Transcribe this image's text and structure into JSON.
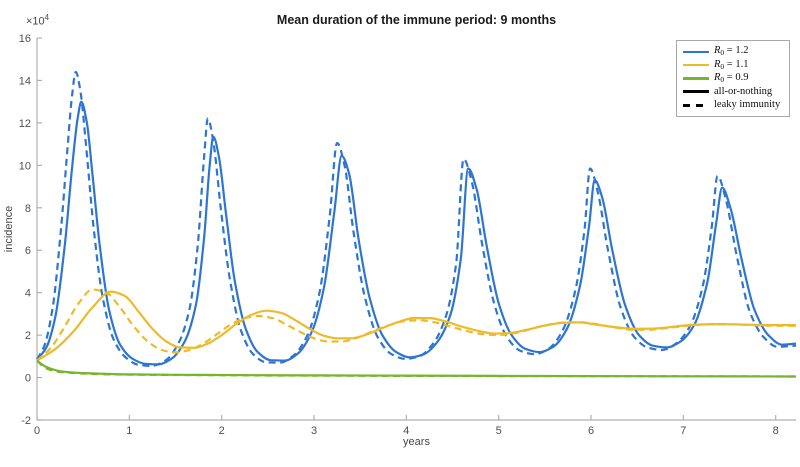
{
  "chart_data": {
    "type": "line",
    "title": "Mean duration of the immune period: 9 months",
    "xlabel": "years",
    "ylabel": "incidence",
    "y_multiplier": {
      "base": "×10",
      "exp": "4"
    },
    "xlim": [
      0,
      8.22
    ],
    "ylim": [
      -2,
      16
    ],
    "x_ticks": [
      "0",
      "1",
      "2",
      "3",
      "4",
      "5",
      "6",
      "7",
      "8"
    ],
    "x_tick_values": [
      0,
      1,
      2,
      3,
      4,
      5,
      6,
      7,
      8
    ],
    "y_ticks": [
      "-2",
      "0",
      "2",
      "4",
      "6",
      "8",
      "10",
      "12",
      "14",
      "16"
    ],
    "y_tick_values": [
      -2,
      0,
      2,
      4,
      6,
      8,
      10,
      12,
      14,
      16
    ],
    "grid": false,
    "legend_position": "top-right",
    "axis_color": "#b0b0b0",
    "series": [
      {
        "name": "R0 = 1.2 all-or-nothing",
        "color": "#2e75d2",
        "dash": "solid",
        "points": [
          [
            0,
            0.85
          ],
          [
            0.1,
            1.4
          ],
          [
            0.2,
            2.9
          ],
          [
            0.3,
            6.2
          ],
          [
            0.38,
            9.9
          ],
          [
            0.44,
            12.2
          ],
          [
            0.48,
            13.0
          ],
          [
            0.54,
            12.0
          ],
          [
            0.6,
            9.6
          ],
          [
            0.68,
            6.2
          ],
          [
            0.78,
            3.2
          ],
          [
            0.9,
            1.55
          ],
          [
            1.03,
            0.9
          ],
          [
            1.17,
            0.65
          ],
          [
            1.31,
            0.62
          ],
          [
            1.46,
            0.9
          ],
          [
            1.6,
            1.7
          ],
          [
            1.72,
            3.4
          ],
          [
            1.81,
            6.6
          ],
          [
            1.87,
            10.0
          ],
          [
            1.91,
            11.35
          ],
          [
            1.97,
            10.4
          ],
          [
            2.05,
            7.6
          ],
          [
            2.14,
            4.6
          ],
          [
            2.26,
            2.3
          ],
          [
            2.39,
            1.2
          ],
          [
            2.53,
            0.82
          ],
          [
            2.68,
            0.8
          ],
          [
            2.83,
            1.15
          ],
          [
            2.98,
            2.2
          ],
          [
            3.11,
            4.3
          ],
          [
            3.22,
            7.8
          ],
          [
            3.3,
            10.45
          ],
          [
            3.38,
            9.6
          ],
          [
            3.48,
            6.6
          ],
          [
            3.6,
            3.8
          ],
          [
            3.74,
            2.0
          ],
          [
            3.89,
            1.2
          ],
          [
            4.04,
            0.95
          ],
          [
            4.19,
            1.1
          ],
          [
            4.34,
            1.7
          ],
          [
            4.48,
            3.0
          ],
          [
            4.59,
            5.6
          ],
          [
            4.67,
            9.85
          ],
          [
            4.76,
            8.9
          ],
          [
            4.87,
            6.2
          ],
          [
            5.0,
            3.5
          ],
          [
            5.14,
            2.0
          ],
          [
            5.29,
            1.35
          ],
          [
            5.44,
            1.2
          ],
          [
            5.59,
            1.45
          ],
          [
            5.74,
            2.3
          ],
          [
            5.88,
            4.3
          ],
          [
            5.98,
            7.2
          ],
          [
            6.04,
            9.3
          ],
          [
            6.12,
            8.5
          ],
          [
            6.23,
            6.0
          ],
          [
            6.37,
            3.4
          ],
          [
            6.52,
            2.0
          ],
          [
            6.67,
            1.5
          ],
          [
            6.82,
            1.42
          ],
          [
            6.97,
            1.7
          ],
          [
            7.12,
            2.5
          ],
          [
            7.26,
            4.5
          ],
          [
            7.36,
            7.4
          ],
          [
            7.42,
            8.95
          ],
          [
            7.51,
            8.0
          ],
          [
            7.63,
            5.6
          ],
          [
            7.77,
            3.2
          ],
          [
            7.92,
            2.0
          ],
          [
            8.07,
            1.55
          ],
          [
            8.22,
            1.6
          ]
        ]
      },
      {
        "name": "R0 = 1.2 leaky immunity",
        "color": "#2e75d2",
        "dash": "dashed",
        "points": [
          [
            0,
            0.85
          ],
          [
            0.08,
            1.5
          ],
          [
            0.17,
            3.3
          ],
          [
            0.26,
            7.0
          ],
          [
            0.33,
            10.8
          ],
          [
            0.38,
            13.3
          ],
          [
            0.42,
            14.4
          ],
          [
            0.47,
            13.5
          ],
          [
            0.53,
            11.0
          ],
          [
            0.61,
            7.2
          ],
          [
            0.71,
            3.8
          ],
          [
            0.83,
            1.8
          ],
          [
            0.96,
            0.95
          ],
          [
            1.1,
            0.6
          ],
          [
            1.24,
            0.55
          ],
          [
            1.39,
            0.8
          ],
          [
            1.53,
            1.6
          ],
          [
            1.65,
            3.2
          ],
          [
            1.74,
            6.2
          ],
          [
            1.81,
            10.4
          ],
          [
            1.85,
            12.2
          ],
          [
            1.91,
            11.1
          ],
          [
            1.99,
            8.0
          ],
          [
            2.09,
            4.6
          ],
          [
            2.21,
            2.2
          ],
          [
            2.34,
            1.1
          ],
          [
            2.48,
            0.72
          ],
          [
            2.63,
            0.7
          ],
          [
            2.78,
            1.05
          ],
          [
            2.93,
            2.0
          ],
          [
            3.06,
            4.0
          ],
          [
            3.17,
            7.6
          ],
          [
            3.25,
            11.05
          ],
          [
            3.33,
            10.0
          ],
          [
            3.43,
            6.8
          ],
          [
            3.55,
            3.8
          ],
          [
            3.69,
            1.9
          ],
          [
            3.84,
            1.1
          ],
          [
            3.99,
            0.88
          ],
          [
            4.14,
            1.0
          ],
          [
            4.29,
            1.6
          ],
          [
            4.43,
            2.9
          ],
          [
            4.54,
            5.4
          ],
          [
            4.62,
            10.3
          ],
          [
            4.71,
            9.2
          ],
          [
            4.82,
            6.3
          ],
          [
            4.95,
            3.5
          ],
          [
            5.09,
            1.9
          ],
          [
            5.24,
            1.25
          ],
          [
            5.39,
            1.1
          ],
          [
            5.54,
            1.35
          ],
          [
            5.69,
            2.2
          ],
          [
            5.83,
            4.1
          ],
          [
            5.93,
            7.0
          ],
          [
            5.99,
            9.85
          ],
          [
            6.07,
            8.8
          ],
          [
            6.18,
            6.1
          ],
          [
            6.32,
            3.3
          ],
          [
            6.47,
            1.9
          ],
          [
            6.62,
            1.4
          ],
          [
            6.77,
            1.3
          ],
          [
            6.92,
            1.6
          ],
          [
            7.07,
            2.4
          ],
          [
            7.21,
            4.3
          ],
          [
            7.31,
            7.2
          ],
          [
            7.37,
            9.5
          ],
          [
            7.46,
            8.4
          ],
          [
            7.58,
            5.7
          ],
          [
            7.72,
            3.1
          ],
          [
            7.87,
            1.9
          ],
          [
            8.02,
            1.45
          ],
          [
            8.22,
            1.5
          ]
        ]
      },
      {
        "name": "R0 = 1.1 all-or-nothing",
        "color": "#eeba28",
        "dash": "solid",
        "points": [
          [
            0,
            0.8
          ],
          [
            0.2,
            1.35
          ],
          [
            0.4,
            2.2
          ],
          [
            0.6,
            3.3
          ],
          [
            0.8,
            4.05
          ],
          [
            0.95,
            3.85
          ],
          [
            1.1,
            3.1
          ],
          [
            1.25,
            2.3
          ],
          [
            1.4,
            1.7
          ],
          [
            1.55,
            1.42
          ],
          [
            1.7,
            1.4
          ],
          [
            1.85,
            1.6
          ],
          [
            2.0,
            2.0
          ],
          [
            2.15,
            2.5
          ],
          [
            2.32,
            2.95
          ],
          [
            2.48,
            3.15
          ],
          [
            2.64,
            3.05
          ],
          [
            2.8,
            2.7
          ],
          [
            2.95,
            2.3
          ],
          [
            3.1,
            1.98
          ],
          [
            3.25,
            1.85
          ],
          [
            3.4,
            1.85
          ],
          [
            3.55,
            2.0
          ],
          [
            3.72,
            2.3
          ],
          [
            3.9,
            2.6
          ],
          [
            4.08,
            2.8
          ],
          [
            4.25,
            2.8
          ],
          [
            4.42,
            2.65
          ],
          [
            4.6,
            2.4
          ],
          [
            4.78,
            2.2
          ],
          [
            4.95,
            2.07
          ],
          [
            5.12,
            2.1
          ],
          [
            5.3,
            2.25
          ],
          [
            5.5,
            2.45
          ],
          [
            5.7,
            2.58
          ],
          [
            5.88,
            2.6
          ],
          [
            6.05,
            2.5
          ],
          [
            6.25,
            2.38
          ],
          [
            6.45,
            2.3
          ],
          [
            6.62,
            2.3
          ],
          [
            6.8,
            2.35
          ],
          [
            7.0,
            2.45
          ],
          [
            7.2,
            2.5
          ],
          [
            7.4,
            2.52
          ],
          [
            7.6,
            2.5
          ],
          [
            7.8,
            2.48
          ],
          [
            8.0,
            2.47
          ],
          [
            8.22,
            2.47
          ]
        ]
      },
      {
        "name": "R0 = 1.1 leaky immunity",
        "color": "#eeba28",
        "dash": "dashed",
        "points": [
          [
            0,
            0.8
          ],
          [
            0.15,
            1.4
          ],
          [
            0.3,
            2.4
          ],
          [
            0.45,
            3.5
          ],
          [
            0.6,
            4.15
          ],
          [
            0.75,
            4.0
          ],
          [
            0.9,
            3.3
          ],
          [
            1.05,
            2.4
          ],
          [
            1.2,
            1.7
          ],
          [
            1.35,
            1.3
          ],
          [
            1.5,
            1.18
          ],
          [
            1.65,
            1.3
          ],
          [
            1.8,
            1.6
          ],
          [
            1.95,
            2.05
          ],
          [
            2.1,
            2.5
          ],
          [
            2.25,
            2.8
          ],
          [
            2.4,
            2.9
          ],
          [
            2.55,
            2.8
          ],
          [
            2.7,
            2.5
          ],
          [
            2.85,
            2.15
          ],
          [
            3.0,
            1.85
          ],
          [
            3.15,
            1.7
          ],
          [
            3.3,
            1.7
          ],
          [
            3.45,
            1.85
          ],
          [
            3.62,
            2.15
          ],
          [
            3.8,
            2.45
          ],
          [
            3.97,
            2.65
          ],
          [
            4.14,
            2.7
          ],
          [
            4.31,
            2.6
          ],
          [
            4.48,
            2.4
          ],
          [
            4.65,
            2.2
          ],
          [
            4.82,
            2.05
          ],
          [
            5.0,
            2.0
          ],
          [
            5.18,
            2.1
          ],
          [
            5.36,
            2.3
          ],
          [
            5.55,
            2.5
          ],
          [
            5.73,
            2.6
          ],
          [
            5.9,
            2.6
          ],
          [
            6.08,
            2.5
          ],
          [
            6.27,
            2.35
          ],
          [
            6.45,
            2.25
          ],
          [
            6.63,
            2.25
          ],
          [
            6.81,
            2.33
          ],
          [
            7.0,
            2.42
          ],
          [
            7.2,
            2.5
          ],
          [
            7.4,
            2.52
          ],
          [
            7.6,
            2.5
          ],
          [
            7.8,
            2.46
          ],
          [
            8.0,
            2.44
          ],
          [
            8.22,
            2.44
          ]
        ]
      },
      {
        "name": "R0 = 0.9 all-or-nothing",
        "color": "#79b42d",
        "dash": "solid",
        "points": [
          [
            0,
            0.8
          ],
          [
            0.1,
            0.5
          ],
          [
            0.25,
            0.3
          ],
          [
            0.45,
            0.22
          ],
          [
            0.7,
            0.18
          ],
          [
            1.0,
            0.15
          ],
          [
            1.5,
            0.13
          ],
          [
            2.0,
            0.12
          ],
          [
            3.0,
            0.1
          ],
          [
            4.0,
            0.09
          ],
          [
            5.0,
            0.08
          ],
          [
            6.0,
            0.07
          ],
          [
            7.0,
            0.06
          ],
          [
            8.22,
            0.05
          ]
        ]
      },
      {
        "name": "R0 = 0.9 leaky immunity",
        "color": "#79b42d",
        "dash": "dashed",
        "points": [
          [
            0,
            0.8
          ],
          [
            0.08,
            0.48
          ],
          [
            0.22,
            0.28
          ],
          [
            0.45,
            0.2
          ],
          [
            0.7,
            0.16
          ],
          [
            1.0,
            0.14
          ],
          [
            1.5,
            0.12
          ],
          [
            2.0,
            0.11
          ],
          [
            3.0,
            0.09
          ],
          [
            4.0,
            0.08
          ],
          [
            5.0,
            0.07
          ],
          [
            6.0,
            0.065
          ],
          [
            7.0,
            0.06
          ],
          [
            8.22,
            0.05
          ]
        ]
      }
    ],
    "legend": {
      "color_entries": [
        {
          "symbol": "R",
          "sub": "0",
          "text": " = 1.2",
          "color": "#2e75d2"
        },
        {
          "symbol": "R",
          "sub": "0",
          "text": " = 1.1",
          "color": "#eeba28"
        },
        {
          "symbol": "R",
          "sub": "0",
          "text": " = 0.9",
          "color": "#79b42d"
        }
      ],
      "style_entries": [
        {
          "text": "all-or-nothing",
          "dash": "solid",
          "color": "#000000"
        },
        {
          "text": "leaky immunity",
          "dash": "dashed",
          "color": "#000000"
        }
      ]
    }
  }
}
